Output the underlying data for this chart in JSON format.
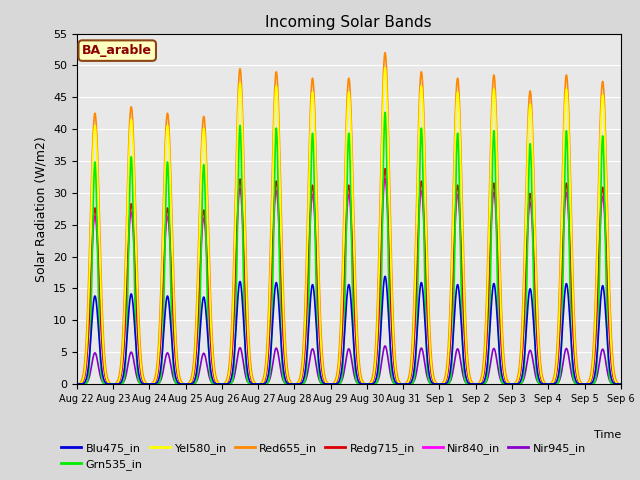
{
  "title": "Incoming Solar Bands",
  "xlabel": "Time",
  "ylabel": "Solar Radiation (W/m2)",
  "annotation": "BA_arable",
  "ylim": [
    0,
    55
  ],
  "fig_bg": "#d8d8d8",
  "plot_bg": "#e8e8e8",
  "series": {
    "Blu475_in": {
      "color": "#0000dd",
      "lw": 1.2
    },
    "Grn535_in": {
      "color": "#00ee00",
      "lw": 1.2
    },
    "Yel580_in": {
      "color": "#ffff00",
      "lw": 1.2
    },
    "Red655_in": {
      "color": "#ff8800",
      "lw": 1.2
    },
    "Redg715_in": {
      "color": "#dd0000",
      "lw": 1.2
    },
    "Nir840_in": {
      "color": "#ff00ff",
      "lw": 1.2
    },
    "Nir945_in": {
      "color": "#8800cc",
      "lw": 1.2
    }
  },
  "tick_dates": [
    "Aug 22",
    "Aug 23",
    "Aug 24",
    "Aug 25",
    "Aug 26",
    "Aug 27",
    "Aug 28",
    "Aug 29",
    "Aug 30",
    "Aug 31",
    "Sep 1",
    "Sep 2",
    "Sep 3",
    "Sep 4",
    "Sep 5",
    "Sep 6"
  ],
  "day_peaks_red655": [
    42.5,
    43.5,
    42.5,
    42.0,
    49.5,
    49.0,
    48.0,
    48.0,
    52.0,
    49.0,
    48.0,
    48.5,
    46.0,
    48.5,
    47.5
  ],
  "scale_factors": {
    "Blu475_in": 0.325,
    "Grn535_in": 0.82,
    "Yel580_in": 0.955,
    "Red655_in": 1.0,
    "Redg715_in": 0.65,
    "Nir840_in": 0.62,
    "Nir945_in": 0.115
  },
  "peak_widths": {
    "Blu475_in": 0.1,
    "Grn535_in": 0.07,
    "Yel580_in": 0.115,
    "Red655_in": 0.125,
    "Redg715_in": 0.115,
    "Nir840_in": 0.115,
    "Nir945_in": 0.09
  },
  "grid_color": "#ffffff",
  "grid_alpha": 1.0
}
